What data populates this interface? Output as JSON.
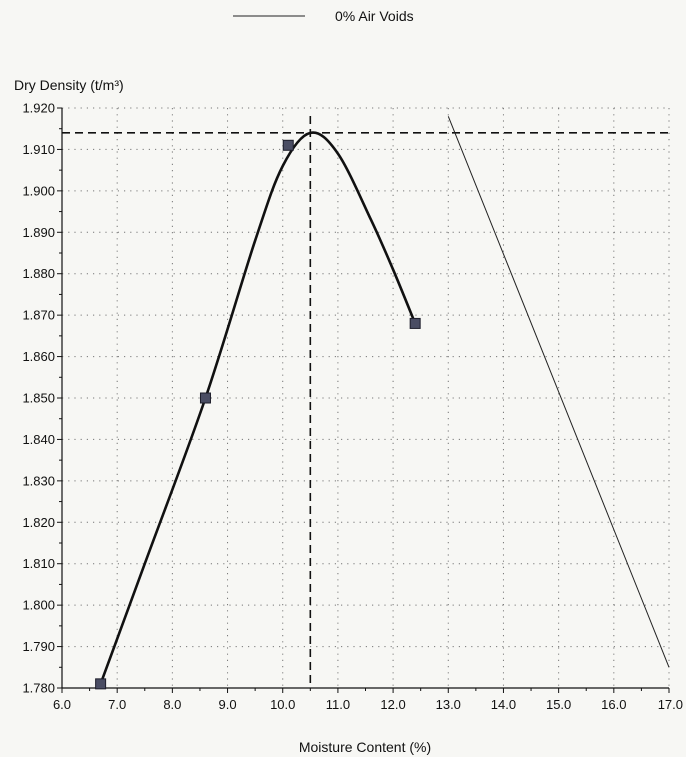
{
  "chart_data": {
    "type": "line",
    "title": "",
    "xlabel": "Moisture Content (%)",
    "ylabel": "Dry Density (t/m³)",
    "xlim": [
      6.0,
      17.0
    ],
    "ylim": [
      1.78,
      1.92
    ],
    "x_ticks": [
      "6.0",
      "7.0",
      "8.0",
      "9.0",
      "10.0",
      "11.0",
      "12.0",
      "13.0",
      "14.0",
      "15.0",
      "16.0",
      "17.0"
    ],
    "y_ticks": [
      "1.780",
      "1.790",
      "1.800",
      "1.810",
      "1.820",
      "1.830",
      "1.840",
      "1.850",
      "1.860",
      "1.870",
      "1.880",
      "1.890",
      "1.900",
      "1.910",
      "1.920"
    ],
    "grid": true,
    "legend": {
      "position": "top",
      "entries": [
        "0% Air Voids"
      ]
    },
    "series": [
      {
        "kind": "markers",
        "color": "#4a4d63",
        "points": [
          {
            "x": 6.7,
            "y": 1.781
          },
          {
            "x": 8.6,
            "y": 1.85
          },
          {
            "x": 10.1,
            "y": 1.911
          },
          {
            "x": 12.4,
            "y": 1.868
          }
        ]
      },
      {
        "kind": "fitted-curve",
        "color": "#111111",
        "points": [
          {
            "x": 6.7,
            "y": 1.781
          },
          {
            "x": 7.5,
            "y": 1.81
          },
          {
            "x": 8.6,
            "y": 1.85
          },
          {
            "x": 9.5,
            "y": 1.888
          },
          {
            "x": 10.0,
            "y": 1.906
          },
          {
            "x": 10.5,
            "y": 1.914
          },
          {
            "x": 11.0,
            "y": 1.909
          },
          {
            "x": 11.6,
            "y": 1.893
          },
          {
            "x": 12.0,
            "y": 1.881
          },
          {
            "x": 12.4,
            "y": 1.868
          }
        ]
      },
      {
        "name": "0% Air Voids",
        "kind": "line",
        "color": "#222222",
        "points": [
          {
            "x": 13.0,
            "y": 1.918
          },
          {
            "x": 17.0,
            "y": 1.785
          }
        ]
      }
    ],
    "annotations": {
      "max_dry_density": 1.914,
      "optimum_moisture_content": 10.5
    }
  }
}
